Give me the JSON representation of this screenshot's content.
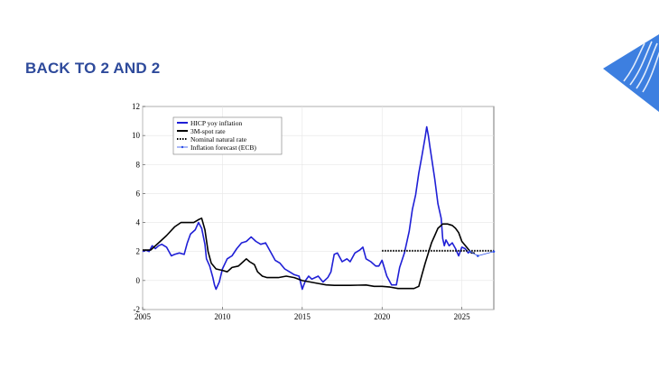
{
  "slide": {
    "title": "BACK TO 2 AND 2"
  },
  "colors": {
    "title": "#2e4a9b",
    "logo": "#3d7fe0",
    "hicp": "#1f1fd6",
    "rate": "#000000",
    "forecast": "#2a4de8"
  },
  "chart_data": {
    "type": "line",
    "xlim": [
      2005,
      2027
    ],
    "ylim": [
      -2,
      12
    ],
    "xticks": [
      2005,
      2010,
      2015,
      2020,
      2025
    ],
    "yticks": [
      -2,
      0,
      2,
      4,
      6,
      8,
      10,
      12
    ],
    "xtick_labels": [
      "2005",
      "2010",
      "2015",
      "2020",
      "2025"
    ],
    "ytick_labels": [
      "-2",
      "0",
      "2",
      "4",
      "6",
      "8",
      "10",
      "12"
    ],
    "legend": {
      "position": "top-left",
      "entries": [
        "HICP yoy inflation",
        "3M-spot rate",
        "Nominal natural rate",
        "Inflation forecast (ECB)"
      ]
    },
    "series": [
      {
        "name": "HICP yoy inflation",
        "color": "#1f1fd6",
        "points": [
          [
            2005.0,
            2.0
          ],
          [
            2005.2,
            2.1
          ],
          [
            2005.4,
            2.0
          ],
          [
            2005.6,
            2.4
          ],
          [
            2005.8,
            2.2
          ],
          [
            2006.0,
            2.4
          ],
          [
            2006.2,
            2.5
          ],
          [
            2006.5,
            2.3
          ],
          [
            2006.8,
            1.7
          ],
          [
            2007.0,
            1.8
          ],
          [
            2007.3,
            1.9
          ],
          [
            2007.6,
            1.8
          ],
          [
            2007.8,
            2.6
          ],
          [
            2008.0,
            3.2
          ],
          [
            2008.3,
            3.5
          ],
          [
            2008.5,
            4.0
          ],
          [
            2008.7,
            3.6
          ],
          [
            2008.9,
            2.5
          ],
          [
            2009.0,
            1.5
          ],
          [
            2009.2,
            1.0
          ],
          [
            2009.4,
            0.2
          ],
          [
            2009.5,
            -0.3
          ],
          [
            2009.6,
            -0.6
          ],
          [
            2009.8,
            -0.1
          ],
          [
            2010.0,
            0.8
          ],
          [
            2010.3,
            1.5
          ],
          [
            2010.6,
            1.7
          ],
          [
            2010.9,
            2.2
          ],
          [
            2011.2,
            2.6
          ],
          [
            2011.5,
            2.7
          ],
          [
            2011.8,
            3.0
          ],
          [
            2012.1,
            2.7
          ],
          [
            2012.4,
            2.5
          ],
          [
            2012.7,
            2.6
          ],
          [
            2013.0,
            2.0
          ],
          [
            2013.3,
            1.4
          ],
          [
            2013.6,
            1.2
          ],
          [
            2013.9,
            0.8
          ],
          [
            2014.2,
            0.6
          ],
          [
            2014.5,
            0.4
          ],
          [
            2014.8,
            0.3
          ],
          [
            2015.0,
            -0.6
          ],
          [
            2015.2,
            0.0
          ],
          [
            2015.4,
            0.3
          ],
          [
            2015.6,
            0.1
          ],
          [
            2015.8,
            0.2
          ],
          [
            2016.0,
            0.3
          ],
          [
            2016.3,
            -0.1
          ],
          [
            2016.6,
            0.2
          ],
          [
            2016.8,
            0.6
          ],
          [
            2017.0,
            1.8
          ],
          [
            2017.2,
            1.9
          ],
          [
            2017.5,
            1.3
          ],
          [
            2017.8,
            1.5
          ],
          [
            2018.0,
            1.3
          ],
          [
            2018.3,
            1.9
          ],
          [
            2018.6,
            2.1
          ],
          [
            2018.8,
            2.3
          ],
          [
            2019.0,
            1.5
          ],
          [
            2019.3,
            1.3
          ],
          [
            2019.6,
            1.0
          ],
          [
            2019.8,
            1.0
          ],
          [
            2020.0,
            1.4
          ],
          [
            2020.3,
            0.3
          ],
          [
            2020.6,
            -0.3
          ],
          [
            2020.9,
            -0.3
          ],
          [
            2021.1,
            0.9
          ],
          [
            2021.4,
            1.9
          ],
          [
            2021.7,
            3.4
          ],
          [
            2021.9,
            4.9
          ],
          [
            2022.1,
            5.9
          ],
          [
            2022.3,
            7.4
          ],
          [
            2022.5,
            8.6
          ],
          [
            2022.7,
            9.9
          ],
          [
            2022.8,
            10.6
          ],
          [
            2022.9,
            10.0
          ],
          [
            2023.0,
            9.2
          ],
          [
            2023.1,
            8.5
          ],
          [
            2023.3,
            7.0
          ],
          [
            2023.5,
            5.3
          ],
          [
            2023.7,
            4.3
          ],
          [
            2023.8,
            2.9
          ],
          [
            2023.9,
            2.4
          ],
          [
            2024.0,
            2.8
          ],
          [
            2024.2,
            2.4
          ],
          [
            2024.4,
            2.6
          ],
          [
            2024.6,
            2.2
          ],
          [
            2024.8,
            1.7
          ],
          [
            2025.0,
            2.3
          ],
          [
            2025.2,
            2.2
          ],
          [
            2025.4,
            1.9
          ],
          [
            2025.5,
            2.0
          ]
        ]
      },
      {
        "name": "3M-spot rate",
        "color": "#000000",
        "points": [
          [
            2005.0,
            2.1
          ],
          [
            2005.5,
            2.1
          ],
          [
            2006.0,
            2.6
          ],
          [
            2006.5,
            3.1
          ],
          [
            2007.0,
            3.7
          ],
          [
            2007.4,
            4.0
          ],
          [
            2007.8,
            4.0
          ],
          [
            2008.2,
            4.0
          ],
          [
            2008.5,
            4.2
          ],
          [
            2008.7,
            4.3
          ],
          [
            2008.9,
            3.5
          ],
          [
            2009.1,
            2.0
          ],
          [
            2009.3,
            1.2
          ],
          [
            2009.6,
            0.8
          ],
          [
            2010.0,
            0.7
          ],
          [
            2010.3,
            0.6
          ],
          [
            2010.6,
            0.9
          ],
          [
            2011.0,
            1.0
          ],
          [
            2011.3,
            1.3
          ],
          [
            2011.5,
            1.5
          ],
          [
            2011.7,
            1.3
          ],
          [
            2012.0,
            1.1
          ],
          [
            2012.2,
            0.6
          ],
          [
            2012.5,
            0.3
          ],
          [
            2012.8,
            0.2
          ],
          [
            2013.0,
            0.2
          ],
          [
            2013.5,
            0.2
          ],
          [
            2014.0,
            0.3
          ],
          [
            2014.5,
            0.2
          ],
          [
            2015.0,
            0.0
          ],
          [
            2015.5,
            -0.1
          ],
          [
            2016.0,
            -0.2
          ],
          [
            2016.5,
            -0.3
          ],
          [
            2017.0,
            -0.33
          ],
          [
            2017.5,
            -0.33
          ],
          [
            2018.0,
            -0.33
          ],
          [
            2018.5,
            -0.32
          ],
          [
            2019.0,
            -0.31
          ],
          [
            2019.5,
            -0.4
          ],
          [
            2020.0,
            -0.4
          ],
          [
            2020.5,
            -0.45
          ],
          [
            2021.0,
            -0.55
          ],
          [
            2021.5,
            -0.55
          ],
          [
            2022.0,
            -0.55
          ],
          [
            2022.3,
            -0.4
          ],
          [
            2022.5,
            0.4
          ],
          [
            2022.7,
            1.2
          ],
          [
            2022.9,
            1.9
          ],
          [
            2023.1,
            2.6
          ],
          [
            2023.3,
            3.1
          ],
          [
            2023.5,
            3.6
          ],
          [
            2023.8,
            3.9
          ],
          [
            2024.1,
            3.9
          ],
          [
            2024.4,
            3.8
          ],
          [
            2024.6,
            3.6
          ],
          [
            2024.8,
            3.3
          ],
          [
            2025.0,
            2.7
          ],
          [
            2025.3,
            2.3
          ],
          [
            2025.6,
            1.9
          ],
          [
            2025.8,
            1.9
          ]
        ]
      },
      {
        "name": "Nominal natural rate",
        "color": "#000000",
        "points": [
          [
            2020.0,
            2.05
          ],
          [
            2027.0,
            2.05
          ]
        ]
      },
      {
        "name": "Inflation forecast (ECB)",
        "color": "#2a4de8",
        "points": [
          [
            2025.5,
            2.0
          ],
          [
            2026.0,
            1.7
          ],
          [
            2027.0,
            2.0
          ]
        ]
      }
    ]
  }
}
